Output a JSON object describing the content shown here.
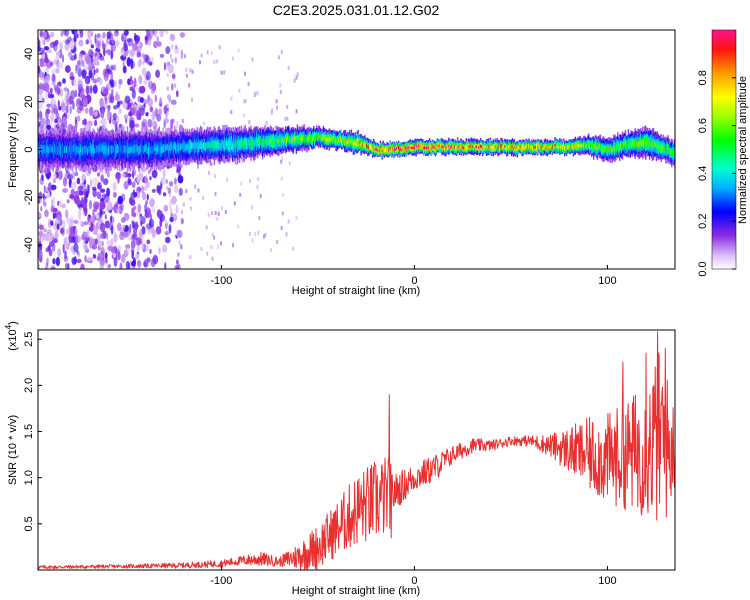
{
  "title": "C2E3.2025.031.01.12.G02",
  "colors": {
    "snr_line": "#e83030",
    "axes": "#000000",
    "background": "#ffffff"
  },
  "chart_data": [
    {
      "type": "heatmap",
      "xlabel": "Height of straight line (km)",
      "ylabel": "Frequency (Hz)",
      "xlim": [
        -195,
        135
      ],
      "ylim": [
        -50,
        50
      ],
      "xticks": [
        -100,
        0,
        100
      ],
      "yticks": [
        -40,
        -20,
        0,
        20,
        40
      ],
      "colorbar": {
        "label": "Normalized spectral amplitude",
        "range": [
          0.0,
          1.0
        ],
        "ticks": [
          "0.0",
          "0.2",
          "0.4",
          "0.6",
          "0.8"
        ],
        "tick_values": [
          0.0,
          0.2,
          0.4,
          0.6,
          0.8
        ],
        "colormap": "rainbow"
      },
      "ridge": {
        "x": [
          -195,
          -170,
          -140,
          -120,
          -100,
          -80,
          -65,
          -50,
          -40,
          -30,
          -20,
          -10,
          0,
          20,
          40,
          60,
          80,
          90,
          100,
          110,
          120,
          130,
          135
        ],
        "freq": [
          0,
          0,
          0,
          1,
          2,
          3,
          4,
          5,
          4,
          3,
          0,
          0,
          1,
          1,
          1,
          1,
          1,
          2,
          0,
          2,
          3,
          0,
          -2
        ],
        "amplitude": [
          0.3,
          0.3,
          0.3,
          0.35,
          0.4,
          0.45,
          0.55,
          0.6,
          0.65,
          0.7,
          0.85,
          0.9,
          0.9,
          0.85,
          0.8,
          0.8,
          0.75,
          0.6,
          0.5,
          0.55,
          0.55,
          0.5,
          0.45
        ],
        "width_hz": [
          8,
          8,
          8,
          7,
          7,
          6,
          5,
          4,
          4,
          4,
          3,
          3,
          3,
          3,
          3,
          3,
          3,
          4,
          5,
          5,
          6,
          5,
          5
        ]
      },
      "scatter_region": {
        "x_from": -195,
        "x_to": -130,
        "freq_from": -50,
        "freq_to": 50
      }
    },
    {
      "type": "line",
      "xlabel": "Height of straight line (km)",
      "ylabel": "SNR (10 * v/v)",
      "multiplier": "(x10",
      "multiplier_exp": "4",
      "xlim": [
        -195,
        135
      ],
      "ylim": [
        0,
        26000
      ],
      "xticks": [
        -100,
        0,
        100
      ],
      "yticks": [
        5000,
        10000,
        15000,
        20000,
        25000
      ],
      "ytick_labels": [
        "0.5",
        "1.0",
        "1.5",
        "2.0",
        "2.5"
      ],
      "series": [
        {
          "x": [
            -195,
            -150,
            -120,
            -100,
            -90,
            -80,
            -70,
            -60,
            -50,
            -40,
            -30,
            -20,
            -14,
            -10,
            0,
            10,
            20,
            30,
            40,
            50,
            60,
            70,
            80,
            90,
            100,
            110,
            120,
            125,
            128,
            132,
            135
          ],
          "values": [
            300,
            400,
            500,
            700,
            1000,
            1200,
            900,
            1500,
            2500,
            4500,
            6500,
            7500,
            8000,
            8500,
            10000,
            11000,
            12500,
            13500,
            13500,
            14000,
            14000,
            13500,
            13000,
            12500,
            12000,
            12500,
            13000,
            14000,
            14000,
            13000,
            13500
          ],
          "amplitude": [
            200,
            200,
            300,
            400,
            500,
            800,
            500,
            1500,
            2500,
            3000,
            4000,
            4500,
            4500,
            2000,
            1500,
            1500,
            1000,
            800,
            600,
            500,
            600,
            1200,
            2500,
            4000,
            5000,
            6000,
            7500,
            9000,
            11000,
            7000,
            4500
          ]
        }
      ],
      "spikes": [
        {
          "x": -13,
          "y": 19000
        },
        {
          "x": -12,
          "y": 3500
        },
        {
          "x": 126,
          "y": 25800
        },
        {
          "x": 130,
          "y": 24000
        },
        {
          "x": 108,
          "y": 22500
        },
        {
          "x": 120,
          "y": 23500
        }
      ]
    }
  ]
}
